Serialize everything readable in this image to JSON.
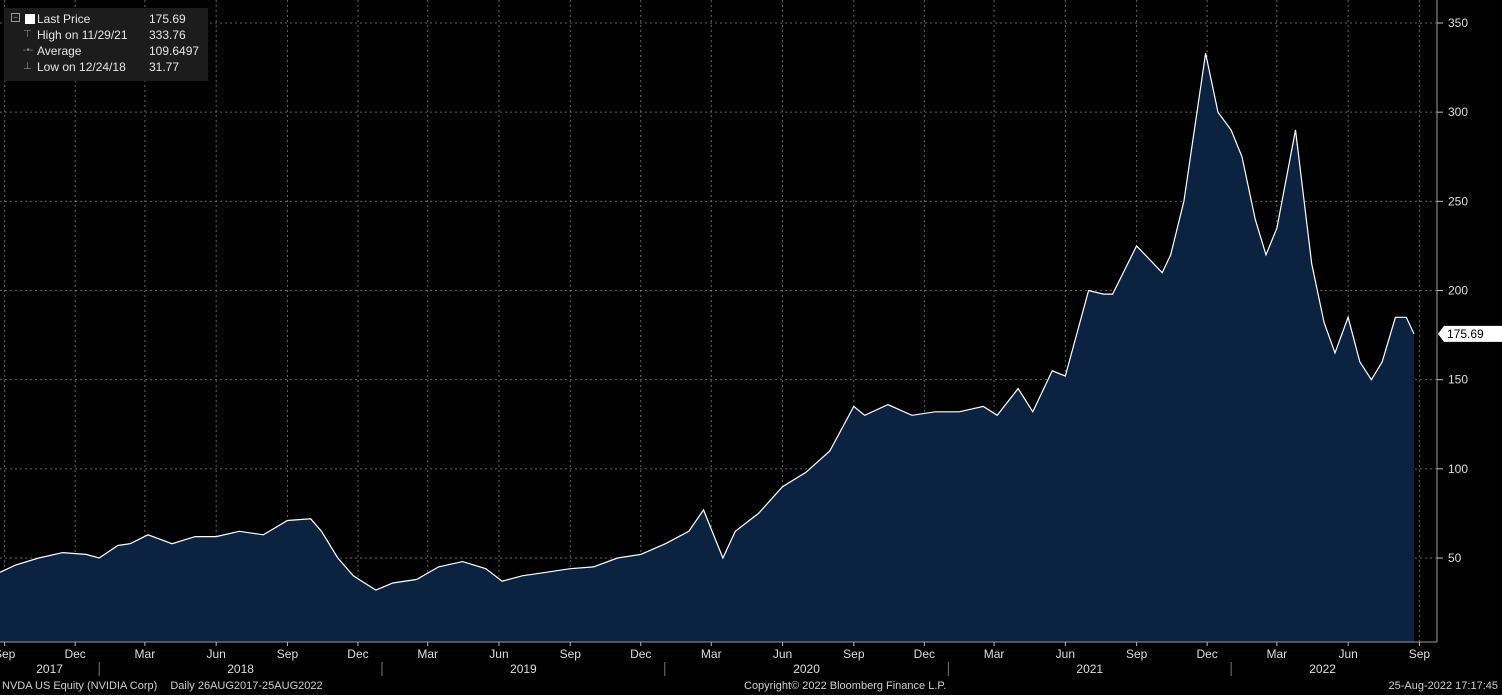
{
  "legend": {
    "last_price_label": "Last Price",
    "last_price_value": "175.69",
    "high_label": "High on 11/29/21",
    "high_value": "333.76",
    "average_label": "Average",
    "average_value": "109.6497",
    "low_label": "Low on 12/24/18",
    "low_value": "31.77"
  },
  "footer": {
    "security": "NVDA US Equity (NVIDIA Corp)",
    "period": "Daily 26AUG2017-25AUG2022",
    "copyright": "Copyright© 2022 Bloomberg Finance L.P.",
    "timestamp": "25-Aug-2022 17:17:45"
  },
  "colors": {
    "background": "#000000",
    "area_fill": "#0b2340",
    "line": "#ffffff",
    "grid": "#8a8a8a"
  },
  "chart_data": {
    "type": "area",
    "series": [
      {
        "x": [
          "2017-08-26",
          "2017-09-15",
          "2017-10-15",
          "2017-11-15",
          "2017-12-15",
          "2018-01-01",
          "2018-01-25",
          "2018-02-10",
          "2018-03-05",
          "2018-04-05",
          "2018-05-05",
          "2018-06-01",
          "2018-07-01",
          "2018-08-01",
          "2018-09-01",
          "2018-10-01",
          "2018-10-15",
          "2018-11-05",
          "2018-11-25",
          "2018-12-24",
          "2019-01-15",
          "2019-02-15",
          "2019-03-15",
          "2019-04-15",
          "2019-05-15",
          "2019-06-05",
          "2019-07-01",
          "2019-08-01",
          "2019-09-01",
          "2019-10-01",
          "2019-11-01",
          "2019-12-01",
          "2020-01-02",
          "2020-02-01",
          "2020-02-20",
          "2020-03-16",
          "2020-04-01",
          "2020-05-01",
          "2020-06-01",
          "2020-07-01",
          "2020-08-01",
          "2020-09-01",
          "2020-09-15",
          "2020-10-15",
          "2020-11-15",
          "2020-12-15",
          "2021-01-15",
          "2021-02-15",
          "2021-03-05",
          "2021-04-01",
          "2021-04-20",
          "2021-05-15",
          "2021-06-01",
          "2021-07-01",
          "2021-07-20",
          "2021-08-01",
          "2021-09-01",
          "2021-10-04",
          "2021-10-15",
          "2021-11-01",
          "2021-11-29",
          "2021-12-15",
          "2022-01-01",
          "2022-01-15",
          "2022-02-01",
          "2022-02-15",
          "2022-03-01",
          "2022-03-25",
          "2022-04-15",
          "2022-05-01",
          "2022-05-15",
          "2022-06-01",
          "2022-06-16",
          "2022-07-01",
          "2022-07-15",
          "2022-08-01",
          "2022-08-15",
          "2022-08-25"
        ],
        "y": [
          42,
          46,
          50,
          53,
          52,
          50,
          57,
          58,
          63,
          58,
          62,
          62,
          65,
          63,
          71,
          72,
          65,
          50,
          40,
          32,
          36,
          38,
          45,
          48,
          44,
          37,
          40,
          42,
          44,
          45,
          50,
          52,
          58,
          65,
          77,
          50,
          65,
          75,
          90,
          98,
          110,
          135,
          130,
          136,
          130,
          132,
          132,
          135,
          130,
          145,
          132,
          155,
          152,
          200,
          198,
          198,
          225,
          210,
          220,
          250,
          333,
          300,
          290,
          275,
          240,
          220,
          235,
          290,
          215,
          182,
          165,
          185,
          160,
          150,
          160,
          185,
          185,
          175.69
        ]
      }
    ],
    "y_ticks": [
      "50",
      "100",
      "150",
      "200",
      "250",
      "300",
      "350"
    ],
    "ylim": [
      0,
      370
    ],
    "x_month_labels": [
      "Sep",
      "Dec",
      "Mar",
      "Jun",
      "Sep",
      "Dec",
      "Mar",
      "Jun",
      "Sep",
      "Dec",
      "Mar",
      "Jun",
      "Sep",
      "Dec",
      "Mar",
      "Jun",
      "Sep",
      "Dec",
      "Mar",
      "Jun",
      "Sep"
    ],
    "x_year_labels": [
      "2017",
      "2018",
      "2019",
      "2020",
      "2021",
      "2022"
    ],
    "last_price_tag": "175.69",
    "grid": true,
    "legend_position": "top-left"
  }
}
